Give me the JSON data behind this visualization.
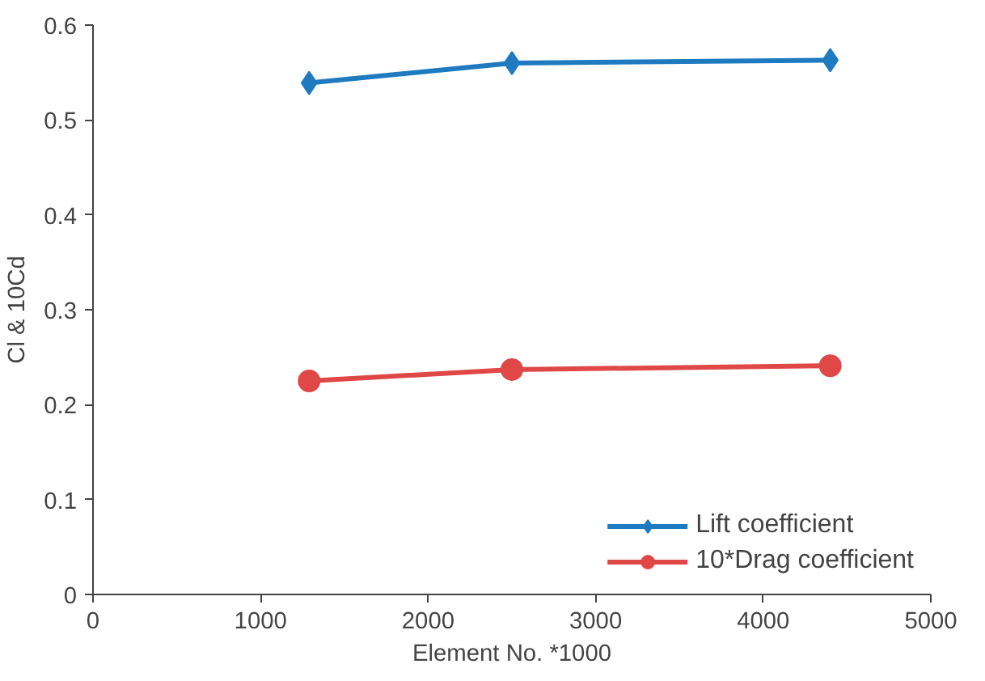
{
  "chart_data": {
    "type": "line",
    "xlabel": "Element No. *1000",
    "ylabel": "Cl & 10Cd",
    "x": [
      1290,
      2500,
      4400
    ],
    "series": [
      {
        "name": "Lift coefficient",
        "color": "#1f7bc0",
        "values": [
          0.539,
          0.56,
          0.563
        ],
        "marker": "diamond"
      },
      {
        "name": "10*Drag coefficient",
        "color": "#e04848",
        "values": [
          0.225,
          0.237,
          0.241
        ],
        "marker": "circle"
      }
    ],
    "xlim": [
      0,
      5000
    ],
    "xticks": [
      0,
      1000,
      2000,
      3000,
      4000,
      5000
    ],
    "ylim": [
      0,
      0.6
    ],
    "yticks": [
      0,
      0.1,
      0.2,
      0.3,
      0.4,
      0.5,
      0.6
    ],
    "grid": false,
    "legend": "bottom right",
    "line_style": "solid"
  }
}
